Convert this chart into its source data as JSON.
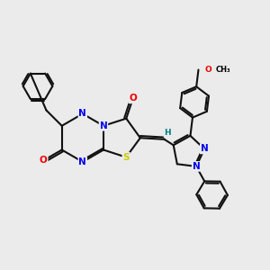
{
  "background_color": "#ebebeb",
  "atom_colors": {
    "N": "#0000ee",
    "O": "#ee0000",
    "S": "#cccc00",
    "H": "#008080",
    "C": "#000000"
  },
  "bond_color": "#111111",
  "bond_width": 1.5,
  "dbo": 0.055
}
